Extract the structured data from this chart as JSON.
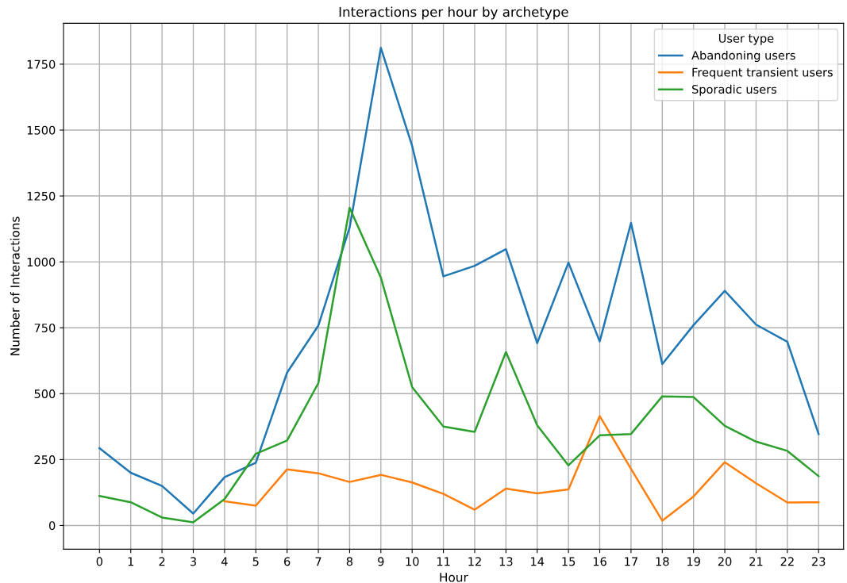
{
  "chart_data": {
    "type": "line",
    "title": "Interactions per hour by archetype",
    "xlabel": "Hour",
    "ylabel": "Number of Interactions",
    "legend_title": "User type",
    "legend": "top right",
    "grid": true,
    "x": [
      0,
      1,
      2,
      3,
      4,
      5,
      6,
      7,
      8,
      9,
      10,
      11,
      12,
      13,
      14,
      15,
      16,
      17,
      18,
      19,
      20,
      21,
      22,
      23
    ],
    "xlim": [
      -1.15,
      23.8
    ],
    "xticks": [
      0,
      1,
      2,
      3,
      4,
      5,
      6,
      7,
      8,
      9,
      10,
      11,
      12,
      13,
      14,
      15,
      16,
      17,
      18,
      19,
      20,
      21,
      22,
      23
    ],
    "ylim": [
      -90,
      1905
    ],
    "yticks": [
      0,
      250,
      500,
      750,
      1000,
      1250,
      1500,
      1750
    ],
    "series": [
      {
        "name": "Abandoning users",
        "color": "#1f77b4",
        "values": [
          293,
          200,
          150,
          45,
          183,
          238,
          580,
          758,
          1130,
          1812,
          1440,
          945,
          985,
          1048,
          692,
          997,
          698,
          1148,
          612,
          760,
          890,
          762,
          697,
          347
        ]
      },
      {
        "name": "Frequent transient users",
        "color": "#ff7f0e",
        "values": [
          null,
          null,
          null,
          null,
          92,
          75,
          213,
          198,
          165,
          192,
          163,
          120,
          60,
          140,
          122,
          137,
          415,
          215,
          18,
          110,
          240,
          160,
          87,
          88
        ]
      },
      {
        "name": "Sporadic users",
        "color": "#2ca02c",
        "values": [
          112,
          88,
          30,
          12,
          100,
          272,
          322,
          540,
          1205,
          940,
          525,
          375,
          355,
          658,
          380,
          228,
          342,
          347,
          490,
          487,
          378,
          318,
          283,
          187
        ]
      }
    ]
  }
}
